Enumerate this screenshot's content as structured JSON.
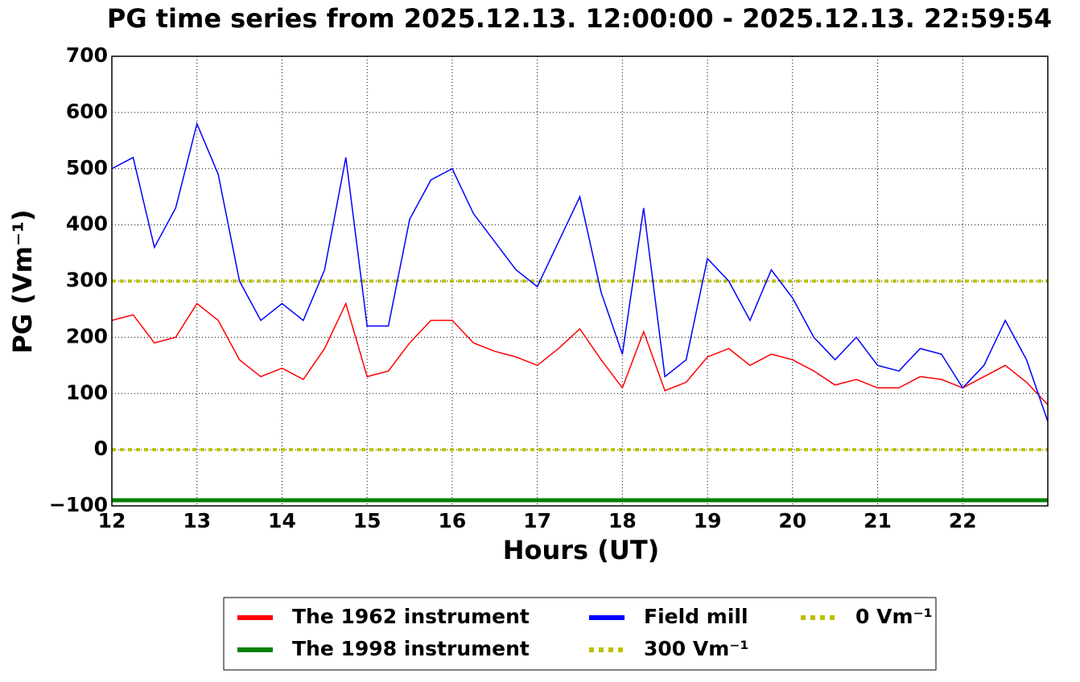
{
  "chart_data": {
    "type": "line",
    "title": "PG time series from 2025.12.13. 12:00:00 - 2025.12.13. 22:59:54",
    "x_label": "Hours (UT)",
    "y_label": "PG (Vm⁻¹)",
    "x": [
      12,
      12.25,
      12.5,
      12.75,
      13,
      13.25,
      13.5,
      13.75,
      14,
      14.25,
      14.5,
      14.75,
      15,
      15.25,
      15.5,
      15.75,
      16,
      16.25,
      16.5,
      16.75,
      17,
      17.25,
      17.5,
      17.75,
      18,
      18.25,
      18.5,
      18.75,
      19,
      19.25,
      19.5,
      19.75,
      20,
      20.25,
      20.5,
      20.75,
      21,
      21.25,
      21.5,
      21.75,
      22,
      22.25,
      22.5,
      22.75,
      23
    ],
    "series": [
      {
        "name": "The 1962 instrument",
        "color": "#ff0000",
        "values": [
          230,
          240,
          190,
          200,
          260,
          230,
          160,
          130,
          145,
          125,
          180,
          260,
          130,
          140,
          190,
          230,
          230,
          190,
          175,
          165,
          150,
          180,
          215,
          160,
          110,
          210,
          105,
          120,
          165,
          180,
          150,
          170,
          160,
          140,
          115,
          125,
          110,
          110,
          130,
          125,
          110,
          130,
          150,
          120,
          80
        ]
      },
      {
        "name": "The 1998 instrument",
        "color": "#008000",
        "values": [
          -90,
          -90,
          -90,
          -90,
          -90,
          -90,
          -90,
          -90,
          -90,
          -90,
          -90,
          -90,
          -90,
          -90,
          -90,
          -90,
          -90,
          -90,
          -90,
          -90,
          -90,
          -90,
          -90,
          -90,
          -90,
          -90,
          -90,
          -90,
          -90,
          -90,
          -90,
          -90,
          -90,
          -90,
          -90,
          -90,
          -90,
          -90,
          -90,
          -90,
          -90,
          -90,
          -90,
          -90,
          -90
        ]
      },
      {
        "name": "Field mill",
        "color": "#0000ff",
        "values": [
          500,
          520,
          360,
          430,
          580,
          490,
          300,
          230,
          260,
          230,
          320,
          520,
          220,
          220,
          410,
          480,
          500,
          420,
          370,
          320,
          290,
          370,
          450,
          280,
          170,
          430,
          130,
          160,
          340,
          300,
          230,
          320,
          270,
          200,
          160,
          200,
          150,
          140,
          180,
          170,
          110,
          150,
          230,
          160,
          50
        ]
      }
    ],
    "hlines": [
      {
        "name": "300 Vm⁻¹",
        "color": "#bfbf00",
        "value": 300
      },
      {
        "name": "0 Vm⁻¹",
        "color": "#bfbf00",
        "value": 0
      }
    ],
    "xlim": [
      12,
      23
    ],
    "xticks": [
      12,
      13,
      14,
      15,
      16,
      17,
      18,
      19,
      20,
      21,
      22
    ],
    "ylim": [
      -100,
      700
    ],
    "yticks": [
      {
        "value": -100,
        "label": "−100"
      },
      0,
      100,
      200,
      300,
      400,
      500,
      600,
      700
    ],
    "grid": true
  }
}
